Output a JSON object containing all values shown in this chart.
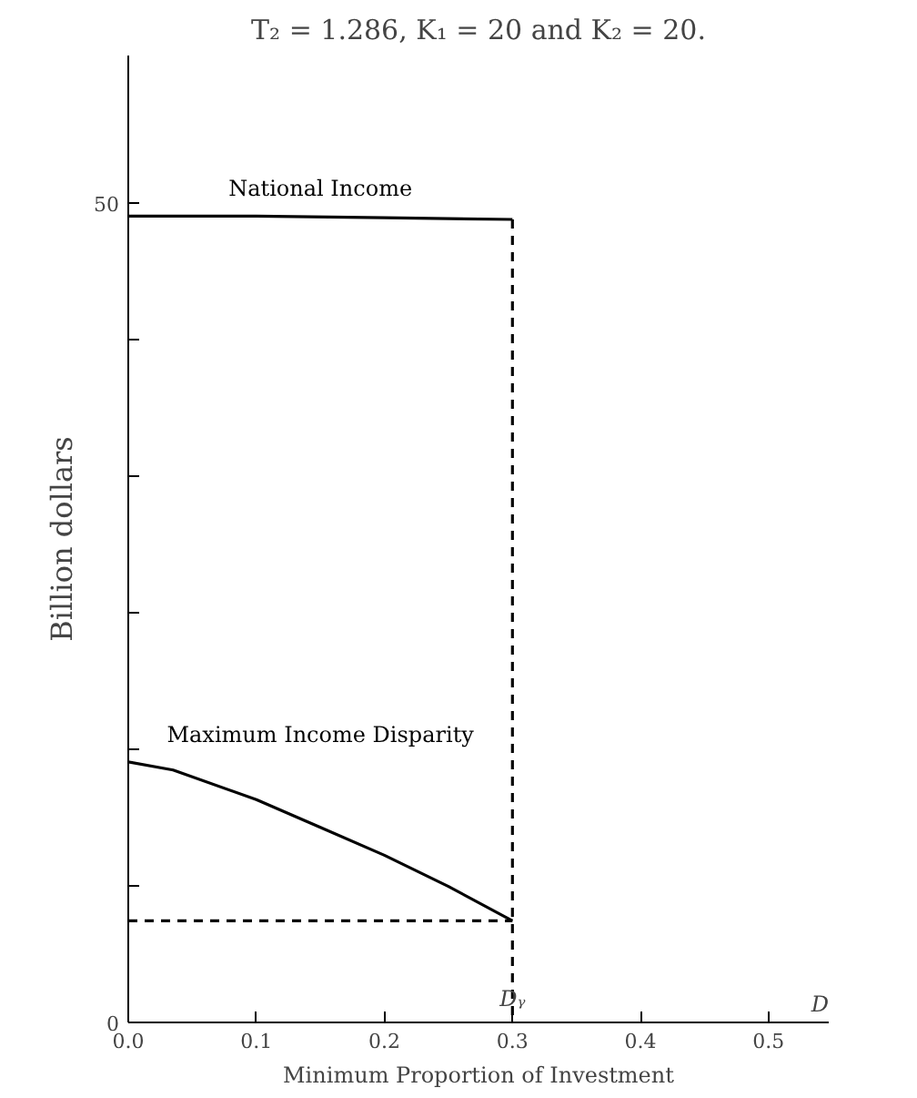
{
  "chart_data": {
    "type": "line",
    "title": "T₂ = 1.286, K₁ = 20 and K₂ = 20.",
    "xlabel": "Minimum Proportion of Investment",
    "ylabel": "Billion dollars",
    "series": [
      {
        "name": "National Income",
        "color": "#000000",
        "x": [
          0,
          0.1,
          0.2,
          0.3
        ],
        "values": [
          49.2,
          49.2,
          49.1,
          49.0
        ]
      },
      {
        "name": "Maximum Income Disparity",
        "color": "#000000",
        "x": [
          0,
          0.035,
          0.1,
          0.15,
          0.2,
          0.25,
          0.3
        ],
        "values": [
          15.9,
          15.4,
          13.6,
          11.9,
          10.2,
          8.3,
          6.2
        ]
      },
      {
        "color": "#000000",
        "line_style": "dashed",
        "x": [
          0,
          0.3
        ],
        "values": [
          6.2,
          6.2
        ]
      },
      {
        "color": "#000000",
        "line_style": "dashed",
        "x": [
          0.3,
          0.3
        ],
        "values": [
          49.0,
          0
        ]
      }
    ],
    "annotations": [
      "D",
      {
        "text": "Dᵧ",
        "x": 0.3,
        "y": 0
      }
    ],
    "xlim": [
      0,
      0.547
    ],
    "ylim": [
      0,
      59
    ],
    "xticks": [
      {
        "value": 0,
        "label": "0.0"
      },
      0.1,
      0.2,
      0.3,
      0.4,
      0.5
    ],
    "yticks": [
      0,
      {
        "value": 8.33,
        "label": null
      },
      {
        "value": 16.67,
        "label": null
      },
      {
        "value": 25,
        "label": null
      },
      {
        "value": 33.33,
        "label": null
      },
      {
        "value": 41.67,
        "label": null
      },
      50
    ],
    "grid": false,
    "marker": "none",
    "line_style": "solid"
  }
}
